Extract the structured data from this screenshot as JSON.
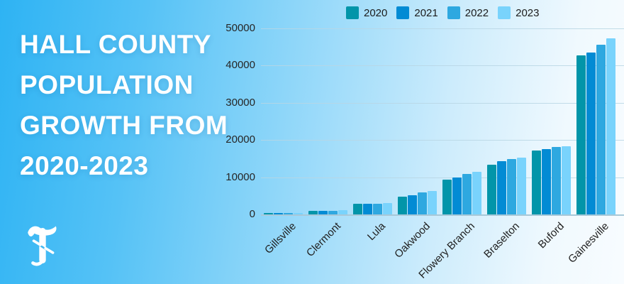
{
  "title": {
    "line1": "HALL COUNTY",
    "line2": "POPULATION",
    "line3": "GROWTH FROM",
    "line4": "2020-2023"
  },
  "logo": {
    "description": "white blackletter T newspaper logo"
  },
  "colors": {
    "background_left": "#2eb3f3",
    "background_right": "#f8fcff",
    "title_text": "#ffffff",
    "axis_text": "#262626",
    "gridline": "#b9d6e4",
    "axis_line": "#a8c8d8"
  },
  "chart_data": {
    "type": "bar",
    "title": "Hall County Population Growth from 2020-2023",
    "xlabel": "",
    "ylabel": "",
    "ylim": [
      0,
      50000
    ],
    "yticks": [
      0,
      10000,
      20000,
      30000,
      40000,
      50000
    ],
    "grid": true,
    "legend_position": "top",
    "categories": [
      "Gillsville",
      "Clermont",
      "Lula",
      "Oakwood",
      "Flowery Branch",
      "Braselton",
      "Buford",
      "Gainesville"
    ],
    "series": [
      {
        "name": "2020",
        "color": "#0295a9",
        "values": [
          370,
          950,
          2800,
          4700,
          9300,
          13400,
          17100,
          42800
        ]
      },
      {
        "name": "2021",
        "color": "#028bd4",
        "values": [
          380,
          1000,
          2850,
          5200,
          9900,
          14300,
          17600,
          43600
        ]
      },
      {
        "name": "2022",
        "color": "#2ea8e0",
        "values": [
          390,
          1050,
          2900,
          6000,
          10900,
          14800,
          18100,
          45700
        ]
      },
      {
        "name": "2023",
        "color": "#79d3fc",
        "values": [
          400,
          1100,
          3000,
          6300,
          11500,
          15300,
          18300,
          47400
        ]
      }
    ]
  }
}
